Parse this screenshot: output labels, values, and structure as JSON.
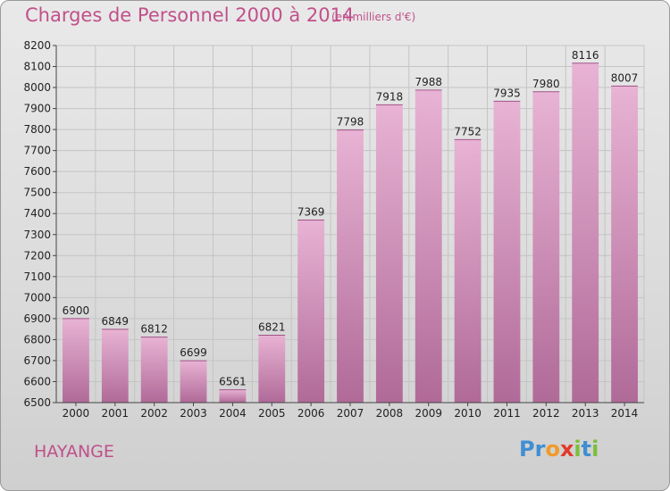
{
  "title": "Charges de Personnel 2000 à 2014",
  "subtitle": "(en milliers d'€)",
  "city": "HAYANGE",
  "logo": {
    "text": "Proxiti",
    "letters": [
      "P",
      "r",
      "o",
      "x",
      "i",
      "t",
      "i"
    ],
    "colors": [
      "#3f8fd2",
      "#3f8fd2",
      "#f09a2a",
      "#e23a2a",
      "#7bbf3a",
      "#3f8fd2",
      "#7bbf3a"
    ]
  },
  "colors": {
    "accent": "#c0508a",
    "bar_light": "#e8b3d4",
    "bar_dark": "#b06a98"
  },
  "chart_data": {
    "type": "bar",
    "title": "Charges de Personnel 2000 à 2014",
    "subtitle": "(en milliers d'€)",
    "categories": [
      "2000",
      "2001",
      "2002",
      "2003",
      "2004",
      "2005",
      "2006",
      "2007",
      "2008",
      "2009",
      "2010",
      "2011",
      "2012",
      "2013",
      "2014"
    ],
    "values": [
      6900,
      6849,
      6812,
      6699,
      6561,
      6821,
      7369,
      7798,
      7918,
      7988,
      7752,
      7935,
      7980,
      8116,
      8007
    ],
    "ylim": [
      6500,
      8200
    ],
    "yticks": [
      6500,
      6600,
      6700,
      6800,
      6900,
      7000,
      7100,
      7200,
      7300,
      7400,
      7500,
      7600,
      7700,
      7800,
      7900,
      8000,
      8100,
      8200
    ],
    "grid": true,
    "data_labels": true
  }
}
